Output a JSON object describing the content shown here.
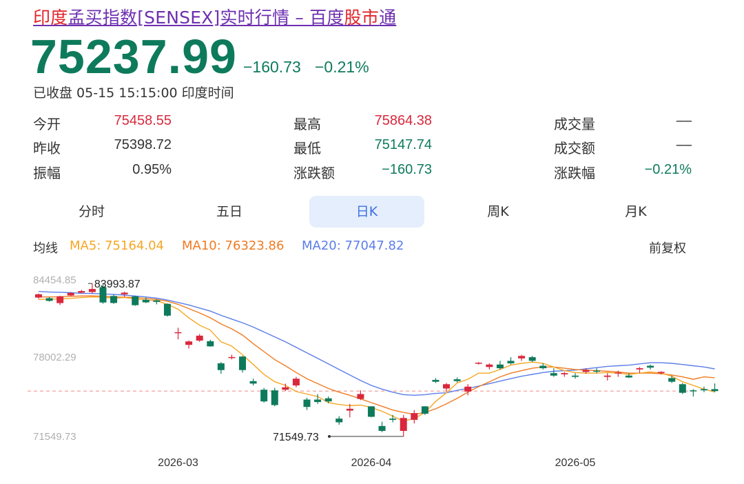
{
  "title": {
    "part1": "印度",
    "part2": "孟买指数[SENSEX]实时行情 – 百度",
    "part3": "股市",
    "part4": "通"
  },
  "quote": {
    "price": "75237.99",
    "change": "−160.73",
    "change_pct": "−0.21%",
    "status": "已收盘 05-15 15:15:00 印度时间"
  },
  "stats": [
    {
      "label": "今开",
      "value": "75458.55",
      "tone": "red"
    },
    {
      "label": "最高",
      "value": "75864.38",
      "tone": "red"
    },
    {
      "label": "成交量",
      "value": "––",
      "tone": "dark"
    },
    {
      "label": "昨收",
      "value": "75398.72",
      "tone": "dark"
    },
    {
      "label": "最低",
      "value": "75147.74",
      "tone": "green"
    },
    {
      "label": "成交额",
      "value": "––",
      "tone": "dark"
    },
    {
      "label": "振幅",
      "value": "0.95%",
      "tone": "dark"
    },
    {
      "label": "涨跌额",
      "value": "−160.73",
      "tone": "green"
    },
    {
      "label": "涨跌幅",
      "value": "−0.21%",
      "tone": "green"
    }
  ],
  "tabs": [
    "分时",
    "五日",
    "日K",
    "周K",
    "月K"
  ],
  "active_tab": "日K",
  "ma": {
    "title": "均线",
    "ma5": "MA5: 75164.04",
    "ma10": "MA10: 76323.86",
    "ma20": "MA20: 77047.82",
    "adjust": "前复权"
  },
  "colors": {
    "up": "#d8283c",
    "down": "#0e7a5c",
    "ma5": "#f5a623",
    "ma10": "#f07a22",
    "ma20": "#5b7de8",
    "title": "#6d2fb0",
    "brand_red": "#e0242a",
    "tab_active_bg": "#e4eefc",
    "tab_active_text": "#3f6fe0"
  },
  "chart_data": {
    "type": "candlestick",
    "y_labels": [
      "84454.85",
      "78002.29",
      "71549.73"
    ],
    "ylim": [
      71549.73,
      84454.85
    ],
    "x_ticks": [
      {
        "label": "2026-03",
        "index": 13
      },
      {
        "label": "2026-04",
        "index": 31
      },
      {
        "label": "2026-05",
        "index": 50
      }
    ],
    "max_label": "83993.87",
    "min_label": "71549.73",
    "current_price": 75237.99,
    "candles": [
      {
        "o": 82850,
        "h": 83180,
        "l": 82750,
        "c": 83120
      },
      {
        "o": 82800,
        "h": 82880,
        "l": 82520,
        "c": 82580
      },
      {
        "o": 82400,
        "h": 83000,
        "l": 82250,
        "c": 82950
      },
      {
        "o": 83020,
        "h": 83300,
        "l": 82950,
        "c": 83230
      },
      {
        "o": 83250,
        "h": 83480,
        "l": 83200,
        "c": 83380
      },
      {
        "o": 83300,
        "h": 83993.87,
        "l": 83200,
        "c": 83550
      },
      {
        "o": 83700,
        "h": 83993.87,
        "l": 82350,
        "c": 82450
      },
      {
        "o": 82980,
        "h": 83100,
        "l": 82340,
        "c": 82410
      },
      {
        "o": 83120,
        "h": 83330,
        "l": 82900,
        "c": 83250
      },
      {
        "o": 82950,
        "h": 82990,
        "l": 82180,
        "c": 82230
      },
      {
        "o": 82670,
        "h": 82860,
        "l": 82400,
        "c": 82460
      },
      {
        "o": 82620,
        "h": 82700,
        "l": 82300,
        "c": 82500
      },
      {
        "o": 82340,
        "h": 82380,
        "l": 81300,
        "c": 81380
      },
      {
        "o": 80000,
        "h": 80400,
        "l": 79450,
        "c": 80030
      },
      {
        "o": 79000,
        "h": 79370,
        "l": 78700,
        "c": 79280
      },
      {
        "o": 79350,
        "h": 79880,
        "l": 79250,
        "c": 79750
      },
      {
        "o": 79300,
        "h": 79420,
        "l": 78850,
        "c": 78880
      },
      {
        "o": 77500,
        "h": 77600,
        "l": 76650,
        "c": 76950
      },
      {
        "o": 78010,
        "h": 78200,
        "l": 77820,
        "c": 78010
      },
      {
        "o": 78050,
        "h": 78100,
        "l": 76750,
        "c": 76950
      },
      {
        "o": 76050,
        "h": 76250,
        "l": 75700,
        "c": 75850
      },
      {
        "o": 75350,
        "h": 75500,
        "l": 74300,
        "c": 74400
      },
      {
        "o": 75300,
        "h": 75500,
        "l": 74000,
        "c": 74100
      },
      {
        "o": 75350,
        "h": 75850,
        "l": 75250,
        "c": 75550
      },
      {
        "o": 75700,
        "h": 76400,
        "l": 75550,
        "c": 76250
      },
      {
        "o": 74550,
        "h": 74700,
        "l": 73700,
        "c": 73950
      },
      {
        "o": 74550,
        "h": 75000,
        "l": 74200,
        "c": 74350
      },
      {
        "o": 74650,
        "h": 74800,
        "l": 74250,
        "c": 74400
      },
      {
        "o": 73000,
        "h": 73200,
        "l": 72500,
        "c": 72700
      },
      {
        "o": 73650,
        "h": 74200,
        "l": 73100,
        "c": 73800
      },
      {
        "o": 74600,
        "h": 75300,
        "l": 74500,
        "c": 75000
      },
      {
        "o": 74000,
        "h": 74000,
        "l": 73100,
        "c": 73150
      },
      {
        "o": 72400,
        "h": 72750,
        "l": 71900,
        "c": 72000
      },
      {
        "o": 73000,
        "h": 73300,
        "l": 72700,
        "c": 72900
      },
      {
        "o": 72000,
        "h": 73300,
        "l": 71549.73,
        "c": 73050
      },
      {
        "o": 72900,
        "h": 73700,
        "l": 72600,
        "c": 73450
      },
      {
        "o": 74000,
        "h": 74000,
        "l": 73300,
        "c": 73400
      },
      {
        "o": 76150,
        "h": 76300,
        "l": 75900,
        "c": 76000
      },
      {
        "o": 75450,
        "h": 75900,
        "l": 75200,
        "c": 75800
      },
      {
        "o": 76200,
        "h": 76350,
        "l": 75950,
        "c": 76050
      },
      {
        "o": 75200,
        "h": 75800,
        "l": 74900,
        "c": 75600
      },
      {
        "o": 77500,
        "h": 77600,
        "l": 77400,
        "c": 77550
      },
      {
        "o": 77200,
        "h": 77500,
        "l": 77000,
        "c": 77400
      },
      {
        "o": 77400,
        "h": 77700,
        "l": 77000,
        "c": 77100
      },
      {
        "o": 77700,
        "h": 78000,
        "l": 77400,
        "c": 77500
      },
      {
        "o": 77900,
        "h": 78200,
        "l": 77700,
        "c": 78100
      },
      {
        "o": 78000,
        "h": 78100,
        "l": 77600,
        "c": 77700
      },
      {
        "o": 77300,
        "h": 77500,
        "l": 77000,
        "c": 77100
      },
      {
        "o": 76700,
        "h": 77100,
        "l": 76400,
        "c": 76500
      },
      {
        "o": 76600,
        "h": 76800,
        "l": 76400,
        "c": 76700
      },
      {
        "o": 76500,
        "h": 76700,
        "l": 76250,
        "c": 76400
      },
      {
        "o": 76800,
        "h": 77100,
        "l": 76650,
        "c": 76950
      },
      {
        "o": 76900,
        "h": 77100,
        "l": 76700,
        "c": 76850
      },
      {
        "o": 76400,
        "h": 76700,
        "l": 76100,
        "c": 76500
      },
      {
        "o": 76700,
        "h": 76900,
        "l": 76400,
        "c": 76750
      },
      {
        "o": 76500,
        "h": 76700,
        "l": 76300,
        "c": 76350
      },
      {
        "o": 77000,
        "h": 77200,
        "l": 76700,
        "c": 77100
      },
      {
        "o": 77300,
        "h": 77400,
        "l": 77000,
        "c": 77150
      },
      {
        "o": 76700,
        "h": 76850,
        "l": 76600,
        "c": 76800
      },
      {
        "o": 76300,
        "h": 76500,
        "l": 75900,
        "c": 76000
      },
      {
        "o": 75800,
        "h": 75900,
        "l": 75000,
        "c": 75100
      },
      {
        "o": 75300,
        "h": 75400,
        "l": 74800,
        "c": 75250
      },
      {
        "o": 75400,
        "h": 75600,
        "l": 75150,
        "c": 75300
      },
      {
        "o": 75398.72,
        "h": 75864.38,
        "l": 75147.74,
        "c": 75237.99
      }
    ],
    "ma5": [
      82700,
      82720,
      82740,
      82780,
      82850,
      82900,
      82880,
      82800,
      82850,
      82750,
      82650,
      82600,
      82300,
      81900,
      81200,
      80600,
      80200,
      79250,
      78900,
      78200,
      77400,
      76600,
      76000,
      75700,
      75200,
      75000,
      74800,
      74300,
      74150,
      74050,
      74100,
      73900,
      73600,
      73200,
      72800,
      73000,
      73500,
      74400,
      75100,
      75900,
      76200,
      76700,
      76700,
      77000,
      77350,
      77500,
      77600,
      77500,
      77200,
      76900,
      76750,
      76700,
      76700,
      76750,
      76700,
      76600,
      76700,
      76800,
      76700,
      76450,
      76000,
      75700,
      75400,
      75164.04
    ],
    "ma10": [
      82900,
      82900,
      82920,
      82950,
      82980,
      82990,
      82950,
      82900,
      82880,
      82850,
      82780,
      82700,
      82550,
      82300,
      81950,
      81600,
      81200,
      80700,
      80300,
      79800,
      79100,
      78450,
      77800,
      77300,
      76750,
      76250,
      75850,
      75450,
      75150,
      74900,
      74600,
      74300,
      74000,
      73700,
      73500,
      73350,
      73500,
      73800,
      74200,
      74650,
      75150,
      75600,
      76000,
      76400,
      76700,
      76900,
      77100,
      77200,
      77200,
      77100,
      77000,
      76950,
      76900,
      76850,
      76800,
      76700,
      76700,
      76700,
      76650,
      76550,
      76400,
      76200,
      76400,
      76323.86
    ],
    "ma20": [
      83350,
      83300,
      83280,
      83250,
      83200,
      83180,
      83150,
      83100,
      83050,
      82980,
      82900,
      82800,
      82650,
      82450,
      82250,
      82000,
      81750,
      81400,
      81100,
      80800,
      80450,
      80050,
      79650,
      79250,
      78800,
      78350,
      77900,
      77450,
      77000,
      76550,
      76100,
      75700,
      75400,
      75150,
      74950,
      74900,
      74950,
      75050,
      75100,
      75300,
      75450,
      75650,
      75850,
      76050,
      76250,
      76450,
      76600,
      76750,
      76850,
      76900,
      76950,
      77050,
      77150,
      77250,
      77300,
      77350,
      77450,
      77550,
      77550,
      77500,
      77400,
      77300,
      77200,
      77047.82
    ]
  }
}
